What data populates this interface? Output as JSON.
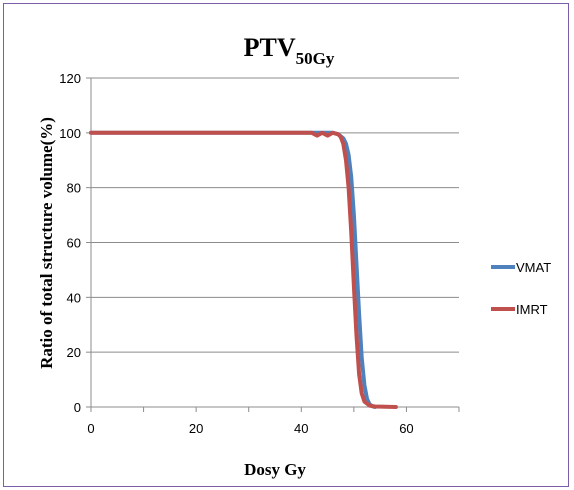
{
  "chart_data": {
    "type": "line",
    "title": "PTV",
    "title_subscript": "50Gy",
    "xlabel": "Dosy Gy",
    "ylabel": "Ratio of total structure volume(%)",
    "xlim": [
      0,
      70
    ],
    "ylim": [
      0,
      120
    ],
    "xticks": [
      0,
      20,
      40,
      60
    ],
    "yticks": [
      0,
      20,
      40,
      60,
      80,
      100,
      120
    ],
    "grid": "horizontal",
    "legend_position": "right",
    "series": [
      {
        "name": "VMAT",
        "color": "#4f81bd",
        "x": [
          0,
          44,
          46,
          47,
          48,
          48.5,
          49,
          49.5,
          50,
          50.5,
          51,
          51.5,
          52,
          52.5,
          53,
          53.5,
          54
        ],
        "y": [
          100,
          100,
          100,
          99.5,
          98,
          96,
          92,
          84,
          70,
          52,
          34,
          18,
          8,
          3,
          1,
          0.3,
          0
        ]
      },
      {
        "name": "IMRT",
        "color": "#c0504d",
        "x": [
          0,
          42,
          43,
          44,
          45,
          46,
          47,
          47.5,
          48,
          48.5,
          49,
          49.5,
          50,
          50.5,
          51,
          51.5,
          52,
          53,
          54,
          56,
          58
        ],
        "y": [
          100,
          100,
          99,
          100,
          99,
          100,
          99.5,
          98.5,
          96,
          90,
          80,
          64,
          44,
          26,
          12,
          5,
          2,
          0.5,
          0.2,
          0.1,
          0
        ]
      }
    ]
  }
}
